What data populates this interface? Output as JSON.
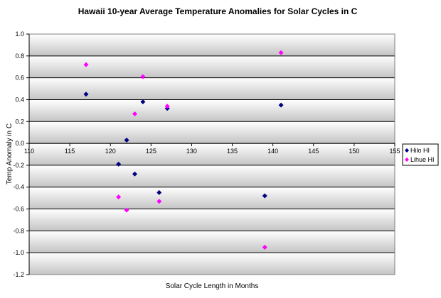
{
  "chart_data": {
    "type": "scatter",
    "title": "Hawaii 10-year Average Temperature Anomalies for Solar Cycles in C",
    "xlabel": "Solar Cycle Length in Months",
    "ylabel": "Temp Anomaly in C",
    "xlim": [
      110,
      155
    ],
    "ylim": [
      -1.2,
      1.0
    ],
    "xticks": [
      110,
      115,
      120,
      125,
      130,
      135,
      140,
      145,
      150,
      155
    ],
    "yticks": [
      1.0,
      0.8,
      0.6,
      0.4,
      0.2,
      0.0,
      -0.2,
      -0.4,
      -0.6,
      -0.8,
      -1.0,
      -1.2
    ],
    "x_tick_labels": [
      "110",
      "115",
      "120",
      "125",
      "130",
      "135",
      "140",
      "145",
      "150",
      "155"
    ],
    "y_tick_labels": [
      "1.0",
      "0.8",
      "0.6",
      "0.4",
      "0.2",
      "0.0",
      "-0.2",
      "-0.4",
      "-0.6",
      "-0.8",
      "-1.0",
      "-1.2"
    ],
    "grid": "horizontal",
    "legend_position": "right",
    "series": [
      {
        "name": "Hilo HI",
        "color": "#000080",
        "points": [
          {
            "x": 117,
            "y": 0.45
          },
          {
            "x": 121,
            "y": -0.19
          },
          {
            "x": 122,
            "y": 0.03
          },
          {
            "x": 123,
            "y": -0.28
          },
          {
            "x": 124,
            "y": 0.38
          },
          {
            "x": 126,
            "y": -0.45
          },
          {
            "x": 127,
            "y": 0.32
          },
          {
            "x": 139,
            "y": -0.48
          },
          {
            "x": 141,
            "y": 0.35
          }
        ]
      },
      {
        "name": "Lihue HI",
        "color": "#ff00ff",
        "points": [
          {
            "x": 117,
            "y": 0.72
          },
          {
            "x": 121,
            "y": -0.49
          },
          {
            "x": 122,
            "y": -0.61
          },
          {
            "x": 123,
            "y": 0.27
          },
          {
            "x": 124,
            "y": 0.61
          },
          {
            "x": 126,
            "y": -0.53
          },
          {
            "x": 127,
            "y": 0.34
          },
          {
            "x": 139,
            "y": -0.95
          },
          {
            "x": 141,
            "y": 0.83
          }
        ]
      }
    ]
  }
}
